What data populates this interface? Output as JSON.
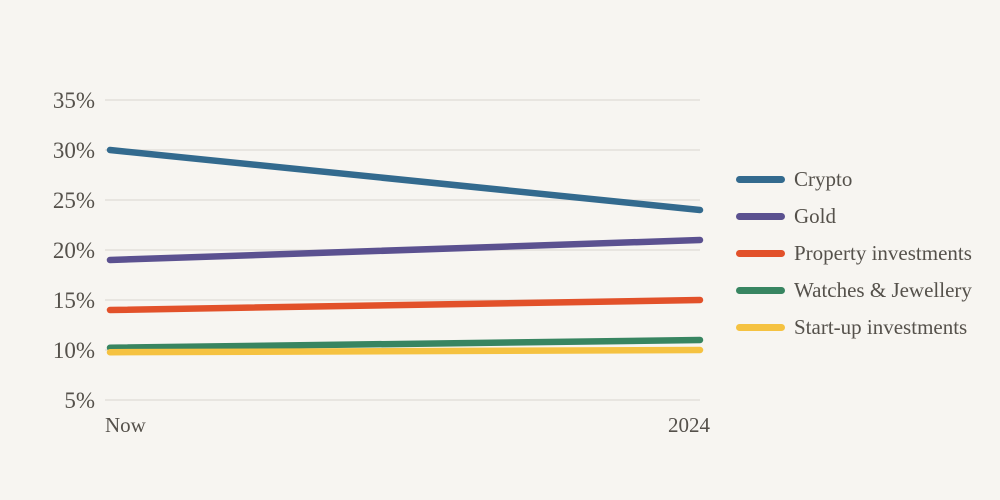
{
  "chart_data": {
    "type": "line",
    "x": [
      "Now",
      "2024"
    ],
    "series": [
      {
        "name": "Crypto",
        "color": "#336a8e",
        "values": [
          30,
          24
        ]
      },
      {
        "name": "Gold",
        "color": "#5b5190",
        "values": [
          19,
          21
        ]
      },
      {
        "name": "Property investments",
        "color": "#e2512a",
        "values": [
          14,
          15
        ]
      },
      {
        "name": "Watches & Jewellery",
        "color": "#388561",
        "values": [
          10,
          11
        ]
      },
      {
        "name": "Start-up investments",
        "color": "#f5c241",
        "values": [
          10,
          10
        ]
      }
    ],
    "title": "",
    "xlabel": "",
    "ylabel": "",
    "ylim": [
      5,
      35
    ],
    "yticks": [
      35,
      30,
      25,
      20,
      15,
      10,
      5
    ],
    "ytick_suffix": "%",
    "grid": "horizontal",
    "legend_position": "right"
  },
  "colors": {
    "background": "#f7f5f1",
    "gridline": "#e8e5e0",
    "text": "#55514b"
  }
}
